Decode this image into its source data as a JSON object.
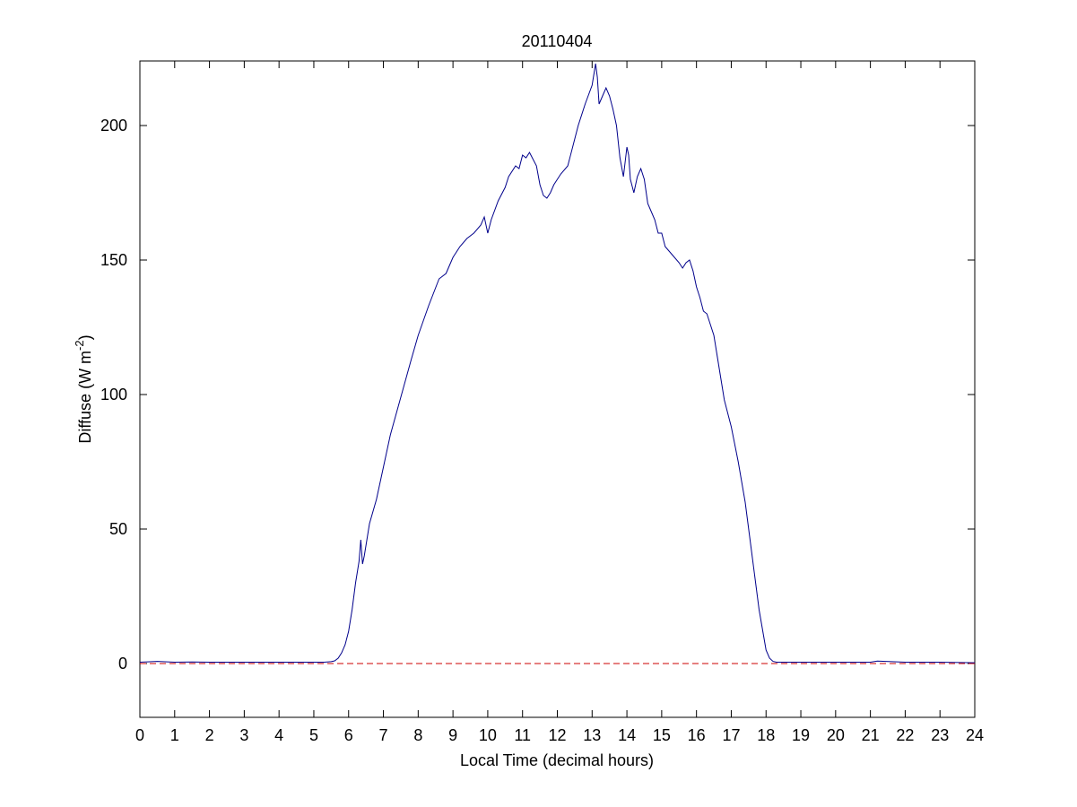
{
  "chart_data": {
    "type": "line",
    "title": "20110404",
    "xlabel": "Local Time (decimal hours)",
    "ylabel_main": "Diffuse (W m",
    "ylabel_sup": "-2",
    "ylabel_close": ")",
    "xlim": [
      0,
      24
    ],
    "ylim": [
      -20,
      224
    ],
    "xticks": [
      "0",
      "1",
      "2",
      "3",
      "4",
      "5",
      "6",
      "7",
      "8",
      "9",
      "10",
      "11",
      "12",
      "13",
      "14",
      "15",
      "16",
      "17",
      "18",
      "19",
      "20",
      "21",
      "22",
      "23",
      "24"
    ],
    "yticks": [
      "0",
      "50",
      "100",
      "150",
      "200"
    ],
    "grid": false,
    "colors": {
      "series": "#00008b",
      "reference": "#cc0000"
    },
    "reference_line": {
      "y": 0,
      "style": "dashed"
    },
    "series": [
      {
        "x": [
          0,
          0.5,
          1,
          1.5,
          2,
          3,
          4,
          5,
          5.3,
          5.5,
          5.6,
          5.7,
          5.8,
          5.9,
          6.0,
          6.1,
          6.2,
          6.3,
          6.35,
          6.4,
          6.45,
          6.5,
          6.6,
          6.8,
          7.0,
          7.2,
          7.5,
          7.8,
          8.0,
          8.3,
          8.6,
          8.8,
          9.0,
          9.2,
          9.4,
          9.6,
          9.8,
          9.9,
          10.0,
          10.1,
          10.3,
          10.5,
          10.6,
          10.8,
          10.9,
          11.0,
          11.1,
          11.2,
          11.4,
          11.5,
          11.6,
          11.7,
          11.8,
          11.9,
          12.0,
          12.1,
          12.3,
          12.5,
          12.6,
          12.8,
          13.0,
          13.1,
          13.15,
          13.2,
          13.3,
          13.4,
          13.5,
          13.6,
          13.7,
          13.8,
          13.9,
          14.0,
          14.05,
          14.1,
          14.2,
          14.3,
          14.4,
          14.5,
          14.6,
          14.7,
          14.8,
          14.9,
          15.0,
          15.1,
          15.3,
          15.5,
          15.6,
          15.7,
          15.8,
          15.9,
          16.0,
          16.1,
          16.2,
          16.3,
          16.4,
          16.5,
          16.6,
          16.7,
          16.8,
          17.0,
          17.2,
          17.4,
          17.6,
          17.8,
          18.0,
          18.1,
          18.2,
          18.3,
          18.4,
          18.5,
          18.6,
          18.7,
          18.8,
          18.9,
          19.0,
          19.5,
          20,
          21,
          21.2,
          22,
          23,
          24
        ],
        "y": [
          0.5,
          0.8,
          0.5,
          0.6,
          0.5,
          0.5,
          0.5,
          0.5,
          0.5,
          0.7,
          1.0,
          2,
          4,
          7,
          12,
          20,
          30,
          38,
          46,
          37,
          40,
          44,
          52,
          61,
          73,
          85,
          99,
          113,
          122,
          133,
          143,
          145,
          151,
          155,
          158,
          160,
          163,
          166,
          160,
          165,
          172,
          177,
          181,
          185,
          184,
          189,
          188,
          190,
          185,
          178,
          174,
          173,
          175,
          178,
          180,
          182,
          185,
          195,
          200,
          208,
          215,
          223,
          218,
          208,
          211,
          214,
          211,
          206,
          200,
          188,
          181,
          192,
          189,
          180,
          175,
          181,
          184,
          180,
          171,
          168,
          165,
          160,
          160,
          155,
          152,
          149,
          147,
          149,
          150,
          146,
          140,
          136,
          131,
          130,
          126,
          122,
          114,
          106,
          98,
          88,
          75,
          60,
          40,
          20,
          5,
          2,
          0.8,
          0.5,
          0.5,
          0.5,
          0.5,
          0.5,
          0.5,
          0.5,
          0.5,
          0.5,
          0.5,
          0.5,
          0.9,
          0.5,
          0.5,
          0.3
        ]
      }
    ]
  }
}
